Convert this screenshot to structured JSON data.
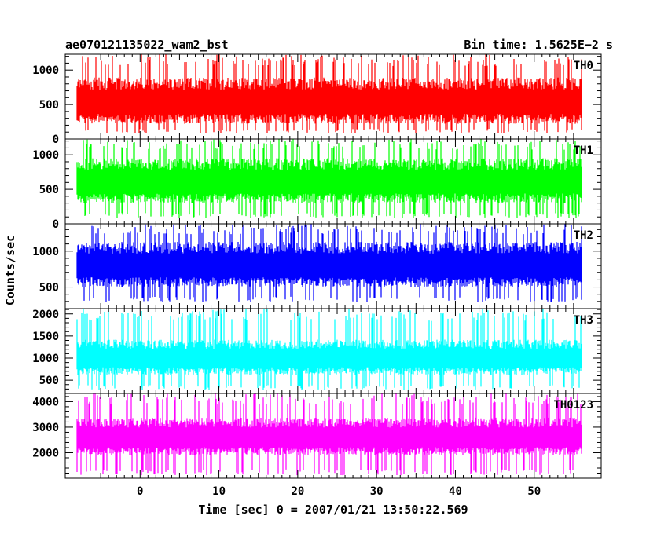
{
  "chart_data": {
    "type": "line",
    "title_left": "ae070121135022_wam2_bst",
    "title_right": "Bin time: 1.5625E−2 s",
    "xlabel": "Time [sec] 0 = 2007/01/21 13:50:22.569",
    "ylabel": "Counts/sec",
    "xlim": [
      -9.5,
      58.5
    ],
    "x_ticks": [
      0,
      10,
      20,
      30,
      40,
      50
    ],
    "x_tick_labels": [
      "0",
      "10",
      "20",
      "30",
      "40",
      "50"
    ],
    "data_x_range": [
      -8,
      56
    ],
    "panels": [
      {
        "name": "TH0",
        "color": "#ff0000",
        "ylim": [
          0,
          1230
        ],
        "ticks": [
          0,
          500,
          1000
        ],
        "tick_labels": [
          "0",
          "500",
          "1000"
        ],
        "base": 540,
        "spread": 320,
        "floor": 80,
        "cap": 1230
      },
      {
        "name": "TH1",
        "color": "#00ff00",
        "ylim": [
          0,
          1230
        ],
        "ticks": [
          0,
          500,
          1000
        ],
        "tick_labels": [
          "0",
          "500",
          "1000"
        ],
        "base": 610,
        "spread": 310,
        "floor": 80,
        "cap": 1230
      },
      {
        "name": "TH2",
        "color": "#0000ff",
        "ylim": [
          200,
          1380
        ],
        "ticks": [
          500,
          1000
        ],
        "tick_labels": [
          "500",
          "1000"
        ],
        "base": 800,
        "spread": 300,
        "floor": 290,
        "cap": 1380
      },
      {
        "name": "TH3",
        "color": "#00ffff",
        "ylim": [
          200,
          2120
        ],
        "ticks": [
          500,
          1000,
          1500,
          2000
        ],
        "tick_labels": [
          "500",
          "1000",
          "1500",
          "2000"
        ],
        "base": 1000,
        "spread": 380,
        "floor": 280,
        "cap": 2120
      },
      {
        "name": "TH0123",
        "color": "#ff00ff",
        "ylim": [
          1000,
          4320
        ],
        "ticks": [
          2000,
          3000,
          4000
        ],
        "tick_labels": [
          "2000",
          "3000",
          "4000"
        ],
        "base": 2600,
        "spread": 700,
        "floor": 1120,
        "cap": 4320
      }
    ],
    "grid": false
  }
}
